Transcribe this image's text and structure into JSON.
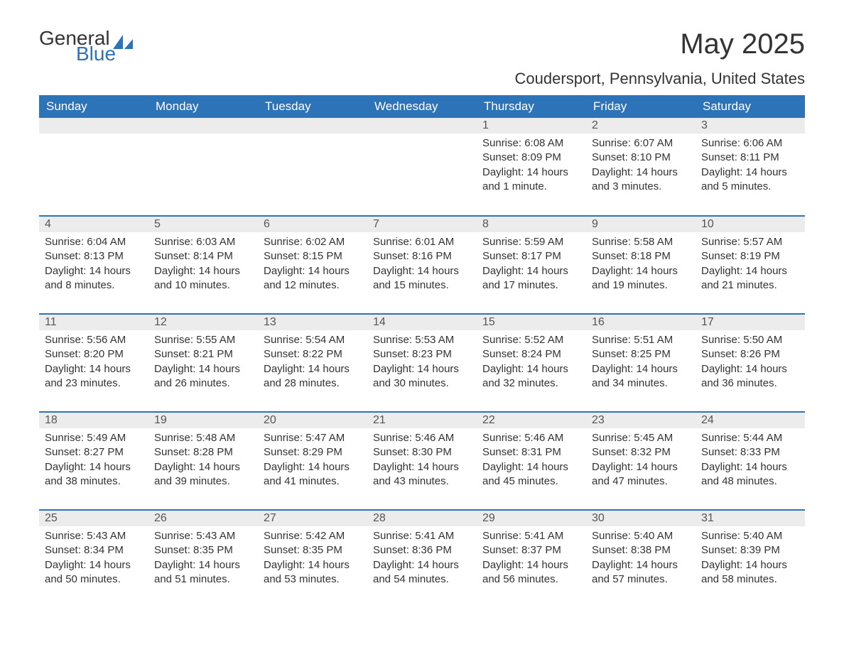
{
  "brand": {
    "part1": "General",
    "part2": "Blue"
  },
  "title": "May 2025",
  "location": "Coudersport, Pennsylvania, United States",
  "colors": {
    "header_bg": "#2d73b8",
    "header_text": "#ffffff",
    "daynum_bg": "#ececec",
    "border": "#2d73b8",
    "text": "#333333"
  },
  "day_headers": [
    "Sunday",
    "Monday",
    "Tuesday",
    "Wednesday",
    "Thursday",
    "Friday",
    "Saturday"
  ],
  "weeks": [
    [
      null,
      null,
      null,
      null,
      {
        "n": "1",
        "sunrise": "Sunrise: 6:08 AM",
        "sunset": "Sunset: 8:09 PM",
        "daylight": "Daylight: 14 hours and 1 minute."
      },
      {
        "n": "2",
        "sunrise": "Sunrise: 6:07 AM",
        "sunset": "Sunset: 8:10 PM",
        "daylight": "Daylight: 14 hours and 3 minutes."
      },
      {
        "n": "3",
        "sunrise": "Sunrise: 6:06 AM",
        "sunset": "Sunset: 8:11 PM",
        "daylight": "Daylight: 14 hours and 5 minutes."
      }
    ],
    [
      {
        "n": "4",
        "sunrise": "Sunrise: 6:04 AM",
        "sunset": "Sunset: 8:13 PM",
        "daylight": "Daylight: 14 hours and 8 minutes."
      },
      {
        "n": "5",
        "sunrise": "Sunrise: 6:03 AM",
        "sunset": "Sunset: 8:14 PM",
        "daylight": "Daylight: 14 hours and 10 minutes."
      },
      {
        "n": "6",
        "sunrise": "Sunrise: 6:02 AM",
        "sunset": "Sunset: 8:15 PM",
        "daylight": "Daylight: 14 hours and 12 minutes."
      },
      {
        "n": "7",
        "sunrise": "Sunrise: 6:01 AM",
        "sunset": "Sunset: 8:16 PM",
        "daylight": "Daylight: 14 hours and 15 minutes."
      },
      {
        "n": "8",
        "sunrise": "Sunrise: 5:59 AM",
        "sunset": "Sunset: 8:17 PM",
        "daylight": "Daylight: 14 hours and 17 minutes."
      },
      {
        "n": "9",
        "sunrise": "Sunrise: 5:58 AM",
        "sunset": "Sunset: 8:18 PM",
        "daylight": "Daylight: 14 hours and 19 minutes."
      },
      {
        "n": "10",
        "sunrise": "Sunrise: 5:57 AM",
        "sunset": "Sunset: 8:19 PM",
        "daylight": "Daylight: 14 hours and 21 minutes."
      }
    ],
    [
      {
        "n": "11",
        "sunrise": "Sunrise: 5:56 AM",
        "sunset": "Sunset: 8:20 PM",
        "daylight": "Daylight: 14 hours and 23 minutes."
      },
      {
        "n": "12",
        "sunrise": "Sunrise: 5:55 AM",
        "sunset": "Sunset: 8:21 PM",
        "daylight": "Daylight: 14 hours and 26 minutes."
      },
      {
        "n": "13",
        "sunrise": "Sunrise: 5:54 AM",
        "sunset": "Sunset: 8:22 PM",
        "daylight": "Daylight: 14 hours and 28 minutes."
      },
      {
        "n": "14",
        "sunrise": "Sunrise: 5:53 AM",
        "sunset": "Sunset: 8:23 PM",
        "daylight": "Daylight: 14 hours and 30 minutes."
      },
      {
        "n": "15",
        "sunrise": "Sunrise: 5:52 AM",
        "sunset": "Sunset: 8:24 PM",
        "daylight": "Daylight: 14 hours and 32 minutes."
      },
      {
        "n": "16",
        "sunrise": "Sunrise: 5:51 AM",
        "sunset": "Sunset: 8:25 PM",
        "daylight": "Daylight: 14 hours and 34 minutes."
      },
      {
        "n": "17",
        "sunrise": "Sunrise: 5:50 AM",
        "sunset": "Sunset: 8:26 PM",
        "daylight": "Daylight: 14 hours and 36 minutes."
      }
    ],
    [
      {
        "n": "18",
        "sunrise": "Sunrise: 5:49 AM",
        "sunset": "Sunset: 8:27 PM",
        "daylight": "Daylight: 14 hours and 38 minutes."
      },
      {
        "n": "19",
        "sunrise": "Sunrise: 5:48 AM",
        "sunset": "Sunset: 8:28 PM",
        "daylight": "Daylight: 14 hours and 39 minutes."
      },
      {
        "n": "20",
        "sunrise": "Sunrise: 5:47 AM",
        "sunset": "Sunset: 8:29 PM",
        "daylight": "Daylight: 14 hours and 41 minutes."
      },
      {
        "n": "21",
        "sunrise": "Sunrise: 5:46 AM",
        "sunset": "Sunset: 8:30 PM",
        "daylight": "Daylight: 14 hours and 43 minutes."
      },
      {
        "n": "22",
        "sunrise": "Sunrise: 5:46 AM",
        "sunset": "Sunset: 8:31 PM",
        "daylight": "Daylight: 14 hours and 45 minutes."
      },
      {
        "n": "23",
        "sunrise": "Sunrise: 5:45 AM",
        "sunset": "Sunset: 8:32 PM",
        "daylight": "Daylight: 14 hours and 47 minutes."
      },
      {
        "n": "24",
        "sunrise": "Sunrise: 5:44 AM",
        "sunset": "Sunset: 8:33 PM",
        "daylight": "Daylight: 14 hours and 48 minutes."
      }
    ],
    [
      {
        "n": "25",
        "sunrise": "Sunrise: 5:43 AM",
        "sunset": "Sunset: 8:34 PM",
        "daylight": "Daylight: 14 hours and 50 minutes."
      },
      {
        "n": "26",
        "sunrise": "Sunrise: 5:43 AM",
        "sunset": "Sunset: 8:35 PM",
        "daylight": "Daylight: 14 hours and 51 minutes."
      },
      {
        "n": "27",
        "sunrise": "Sunrise: 5:42 AM",
        "sunset": "Sunset: 8:35 PM",
        "daylight": "Daylight: 14 hours and 53 minutes."
      },
      {
        "n": "28",
        "sunrise": "Sunrise: 5:41 AM",
        "sunset": "Sunset: 8:36 PM",
        "daylight": "Daylight: 14 hours and 54 minutes."
      },
      {
        "n": "29",
        "sunrise": "Sunrise: 5:41 AM",
        "sunset": "Sunset: 8:37 PM",
        "daylight": "Daylight: 14 hours and 56 minutes."
      },
      {
        "n": "30",
        "sunrise": "Sunrise: 5:40 AM",
        "sunset": "Sunset: 8:38 PM",
        "daylight": "Daylight: 14 hours and 57 minutes."
      },
      {
        "n": "31",
        "sunrise": "Sunrise: 5:40 AM",
        "sunset": "Sunset: 8:39 PM",
        "daylight": "Daylight: 14 hours and 58 minutes."
      }
    ]
  ]
}
